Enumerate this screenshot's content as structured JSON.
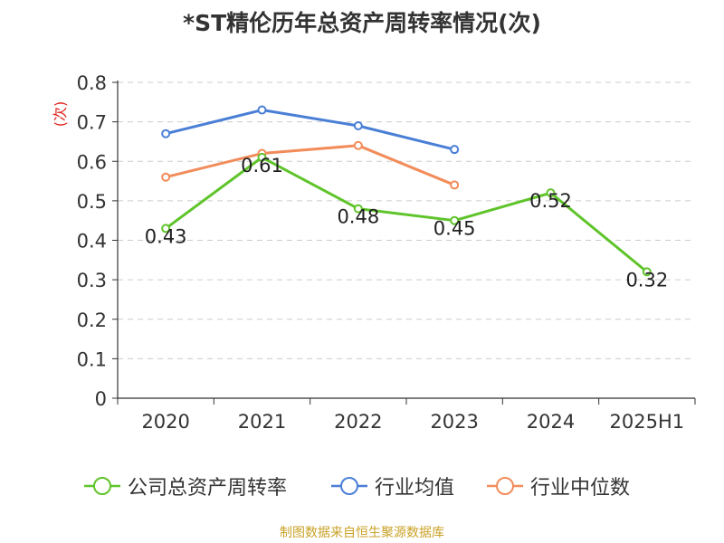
{
  "title": "*ST精伦历年总资产周转率情况(次)",
  "source": "制图数据来自恒生聚源数据库",
  "colors": {
    "company": "#5fc42a",
    "industry_avg": "#4a7fd6",
    "industry_median": "#f28c5a",
    "grid": "#cccccc",
    "axis": "#333333",
    "source": "#c9a227"
  },
  "chart_data": {
    "type": "line",
    "title": "*ST精伦历年总资产周转率情况(次)",
    "ylabel": "(次)",
    "xlabel": "",
    "categories": [
      "2020",
      "2021",
      "2022",
      "2023",
      "2024",
      "2025H1"
    ],
    "ylim": [
      0,
      0.8
    ],
    "yticks": [
      "0",
      "0.1",
      "0.2",
      "0.3",
      "0.4",
      "0.5",
      "0.6",
      "0.7",
      "0.8"
    ],
    "grid": true,
    "legend_position": "bottom",
    "series": [
      {
        "name": "公司总资产周转率",
        "values": [
          0.43,
          0.61,
          0.48,
          0.45,
          0.52,
          0.32
        ],
        "labels": [
          "0.43",
          "0.61",
          "0.48",
          "0.45",
          "0.52",
          "0.32"
        ],
        "color": "#5fc42a"
      },
      {
        "name": "行业均值",
        "values": [
          0.67,
          0.73,
          0.69,
          0.63,
          null,
          null
        ],
        "color": "#4a7fd6"
      },
      {
        "name": "行业中位数",
        "values": [
          0.56,
          0.62,
          0.64,
          0.54,
          null,
          null
        ],
        "color": "#f28c5a"
      }
    ]
  }
}
